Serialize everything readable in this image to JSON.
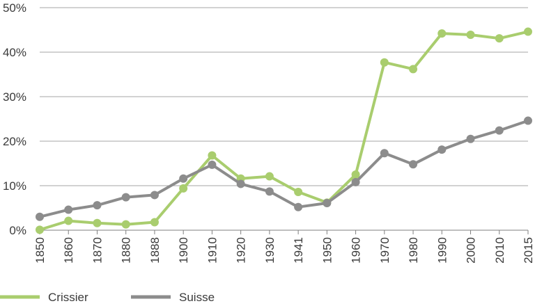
{
  "chart_data": {
    "type": "line",
    "x": [
      1850,
      1860,
      1870,
      1880,
      1888,
      1900,
      1910,
      1920,
      1930,
      1941,
      1950,
      1960,
      1970,
      1980,
      1990,
      2000,
      2010,
      2015
    ],
    "x_tick_labels": [
      "1850",
      "1860",
      "1870",
      "1880",
      "1888",
      "1900",
      "1910",
      "1920",
      "1930",
      "1941",
      "1950",
      "1960",
      "1970",
      "1980",
      "1990",
      "2000",
      "2010",
      "2015"
    ],
    "y_tick_labels": [
      "0%",
      "10%",
      "20%",
      "30%",
      "40%",
      "50%"
    ],
    "y_ticks": [
      0,
      10,
      20,
      30,
      40,
      50
    ],
    "ylim": [
      0,
      50
    ],
    "y_unit": "%",
    "grid": true,
    "legend_position": "bottom",
    "series": [
      {
        "name": "Crissier",
        "color": "#a9cd6e",
        "values": [
          0.1,
          2.1,
          1.6,
          1.3,
          1.8,
          9.4,
          16.8,
          11.6,
          12.1,
          8.6,
          6.2,
          12.5,
          37.7,
          36.2,
          44.2,
          43.9,
          43.1,
          44.6
        ]
      },
      {
        "name": "Suisse",
        "color": "#8c8c8c",
        "values": [
          3.0,
          4.6,
          5.6,
          7.4,
          7.9,
          11.6,
          14.7,
          10.4,
          8.7,
          5.2,
          6.1,
          10.8,
          17.3,
          14.8,
          18.1,
          20.5,
          22.4,
          24.6
        ]
      }
    ]
  }
}
